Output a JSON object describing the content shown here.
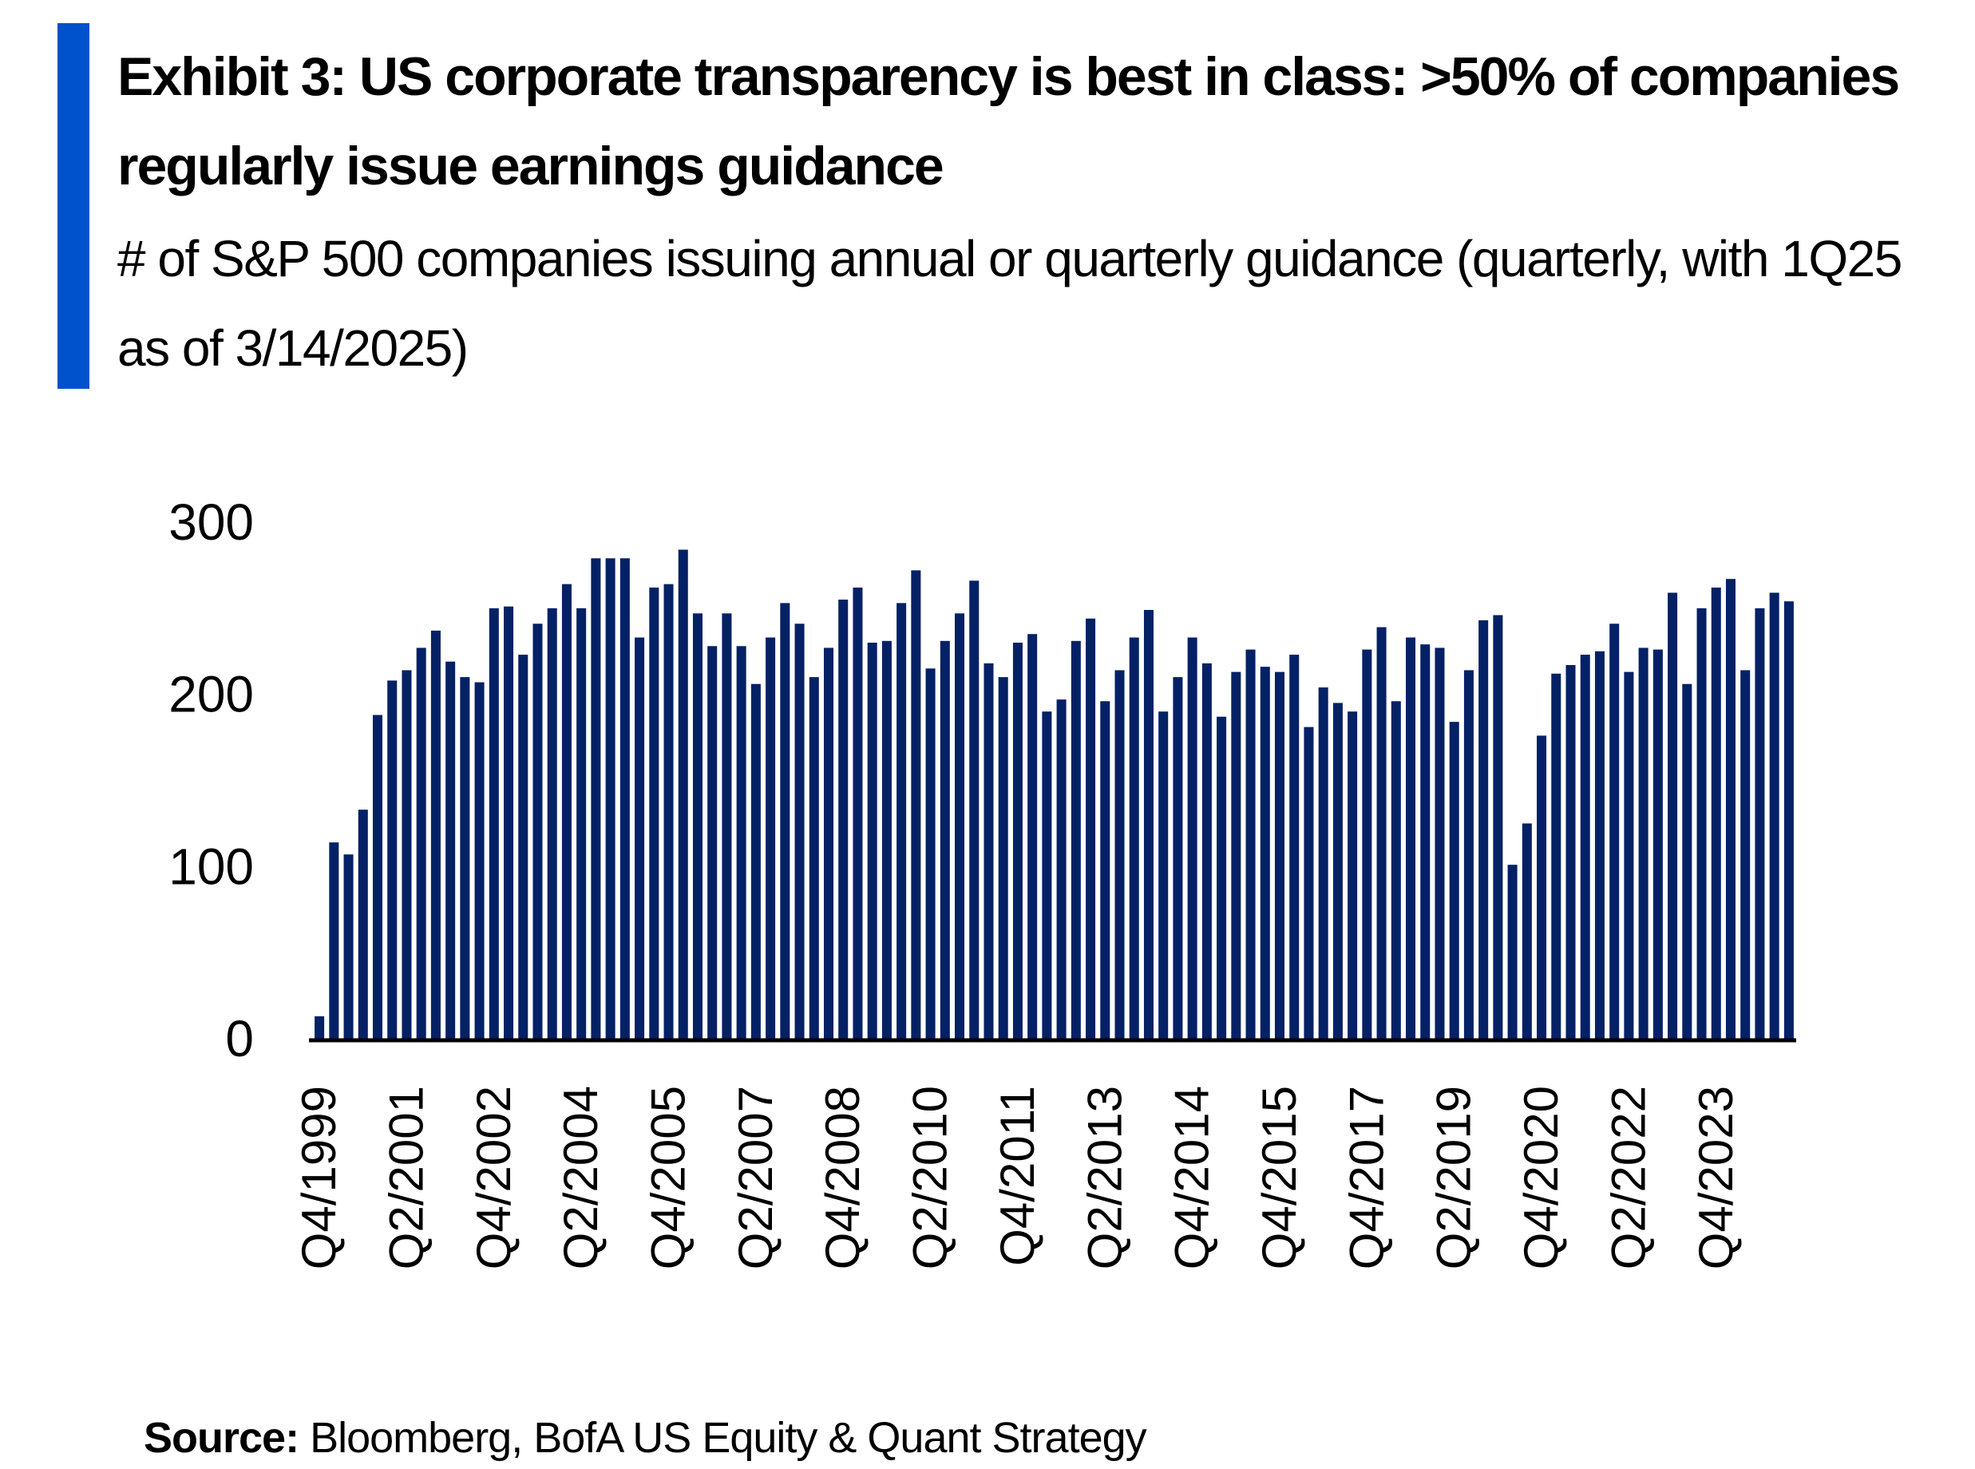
{
  "header": {
    "title": "Exhibit 3: US corporate transparency is best in class: >50% of companies regularly issue earnings guidance",
    "subtitle": "# of S&P 500 companies issuing annual or quarterly guidance (quarterly, with 1Q25 as of 3/14/2025)"
  },
  "source": {
    "label": "Source:",
    "text": " Bloomberg, BofA US Equity & Quant Strategy"
  },
  "colors": {
    "bar": "#042166",
    "accent": "#0052cc"
  },
  "chart_data": {
    "type": "bar",
    "title": "# of S&P 500 companies issuing annual or quarterly guidance",
    "xlabel": "",
    "ylabel": "",
    "ylim": [
      0,
      300
    ],
    "yticks": [
      0,
      100,
      200,
      300
    ],
    "grid": false,
    "first_period": "Q4/1999",
    "last_period": "Q1/2025",
    "tick_labels": [
      "Q4/1999",
      "Q2/2001",
      "Q4/2002",
      "Q2/2004",
      "Q4/2005",
      "Q2/2007",
      "Q4/2008",
      "Q2/2010",
      "Q4/2011",
      "Q2/2013",
      "Q4/2014",
      "Q4/2015",
      "Q4/2017",
      "Q2/2019",
      "Q4/2020",
      "Q2/2022",
      "Q4/2023"
    ],
    "tick_every": 6,
    "values": [
      13,
      114,
      107,
      133,
      188,
      208,
      214,
      227,
      237,
      219,
      210,
      207,
      250,
      251,
      223,
      241,
      250,
      264,
      250,
      279,
      279,
      279,
      233,
      262,
      264,
      284,
      247,
      228,
      247,
      228,
      206,
      233,
      253,
      241,
      210,
      227,
      255,
      262,
      230,
      231,
      253,
      272,
      215,
      231,
      247,
      266,
      218,
      210,
      230,
      235,
      190,
      197,
      231,
      244,
      196,
      214,
      233,
      249,
      190,
      210,
      233,
      218,
      187,
      213,
      226,
      216,
      213,
      223,
      181,
      204,
      195,
      190,
      226,
      239,
      196,
      233,
      229,
      227,
      184,
      214,
      243,
      246,
      101,
      125,
      176,
      212,
      217,
      223,
      225,
      241,
      213,
      227,
      226,
      259,
      206,
      250,
      262,
      267,
      214,
      250,
      259,
      254
    ]
  }
}
